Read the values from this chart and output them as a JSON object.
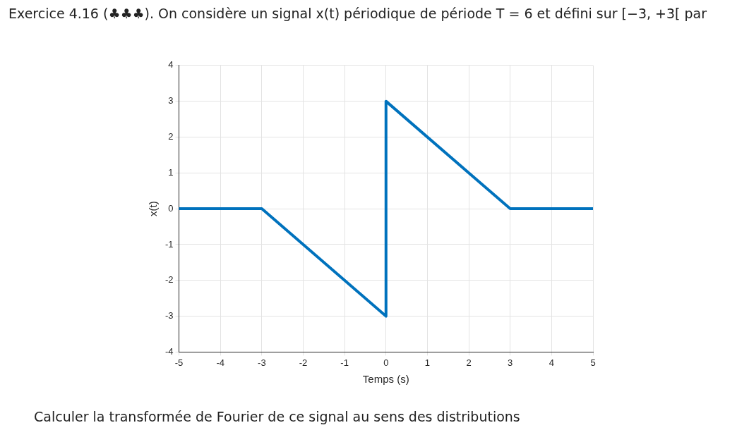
{
  "chart_data": {
    "type": "line",
    "title": "Exercice 4.16 (♣♣♣). On considère un signal x(t) périodique de période T = 6 et défini sur [−3, +3[ par",
    "xlabel": "Temps (s)",
    "ylabel": "x(t)",
    "x": [
      -5,
      -3,
      0,
      0,
      3,
      5
    ],
    "series": [
      {
        "color": "#0072bd",
        "values": [
          0,
          0,
          -3,
          3,
          0,
          0
        ]
      }
    ],
    "xlim": [
      -5,
      5
    ],
    "xticks": [
      -5,
      -4,
      -3,
      -2,
      -1,
      0,
      1,
      2,
      3,
      4,
      5
    ],
    "ylim": [
      -4,
      4
    ],
    "yticks": [
      -4,
      -3,
      -2,
      -1,
      0,
      1,
      2,
      3,
      4
    ],
    "grid": true,
    "marker": "none",
    "line_style": "solid",
    "legend": false,
    "annotations": [
      "Calculer la transformée de Fourier de ce signal au sens des distributions"
    ]
  }
}
